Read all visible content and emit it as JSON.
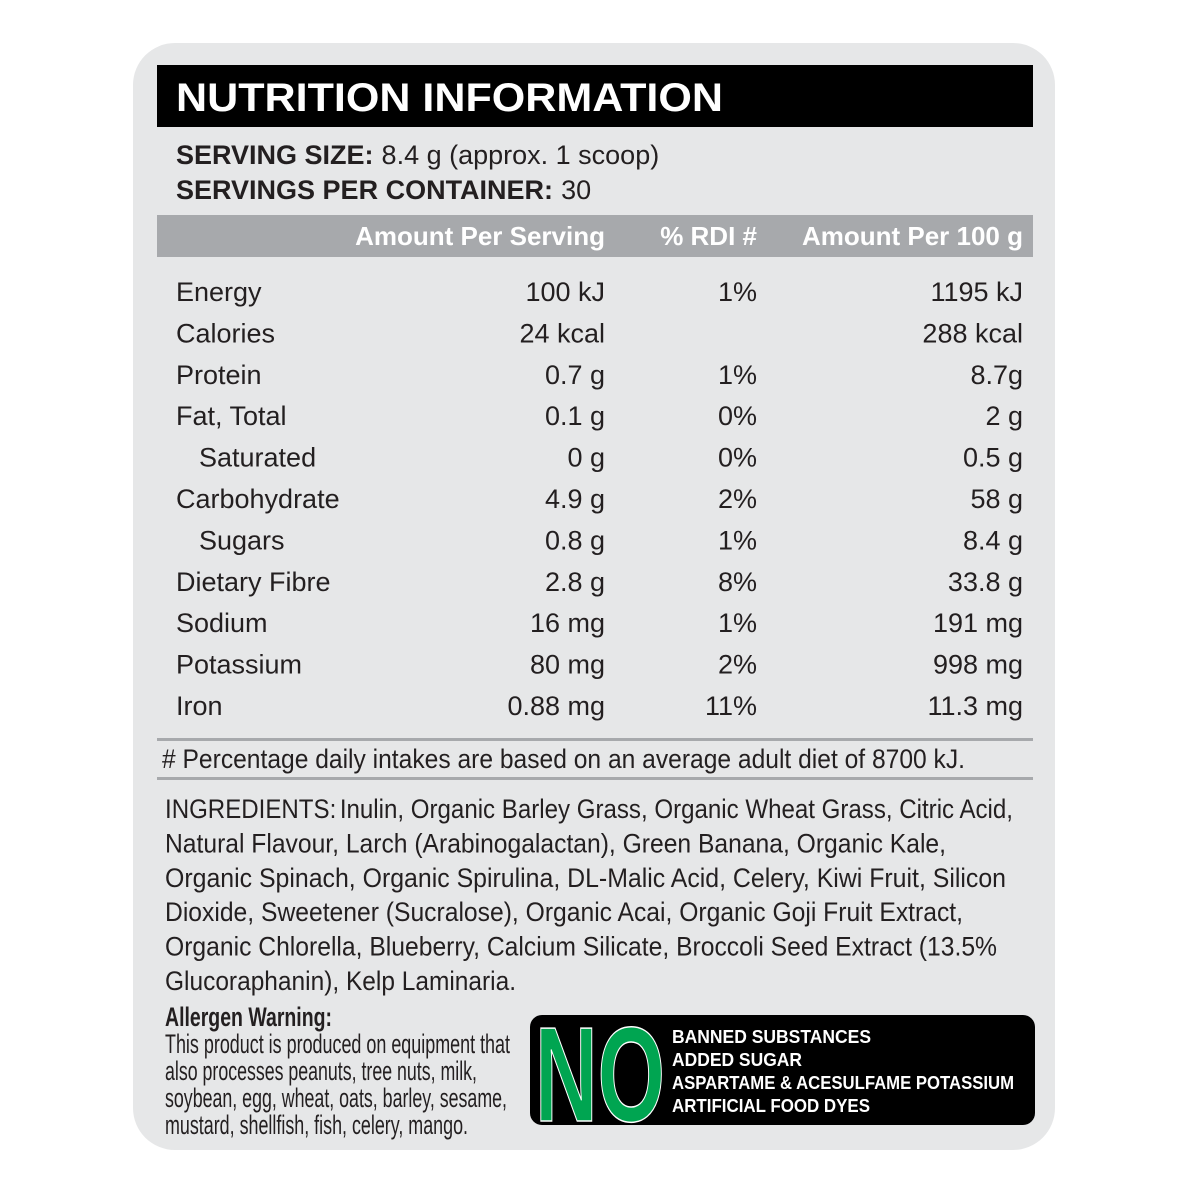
{
  "header": {
    "title": "NUTRITION INFORMATION"
  },
  "serving": {
    "size_label": "SERVING SIZE:",
    "size_value": "8.4 g (approx. 1 scoop)",
    "servings_label": "SERVINGS PER CONTAINER:",
    "servings_value": "30"
  },
  "table": {
    "columns": [
      "Amount Per Serving",
      "% RDI #",
      "Amount Per 100 g"
    ],
    "rows": [
      [
        "Energy",
        "100 kJ",
        "1%",
        "1195 kJ"
      ],
      [
        "Calories",
        "24 kcal",
        null,
        "288 kcal"
      ],
      [
        "Protein",
        "0.7 g",
        "1%",
        "8.7g"
      ],
      [
        "Fat, Total",
        "0.1 g",
        "0%",
        "2 g"
      ],
      [
        "Saturated",
        "0 g",
        "0%",
        "0.5 g"
      ],
      [
        "Carbohydrate",
        "4.9 g",
        "2%",
        "58 g"
      ],
      [
        "Sugars",
        "0.8 g",
        "1%",
        "8.4 g"
      ],
      [
        "Dietary Fibre",
        "2.8 g",
        "8%",
        "33.8 g"
      ],
      [
        "Sodium",
        "16 mg",
        "1%",
        "191 mg"
      ],
      [
        "Potassium",
        "80 mg",
        "2%",
        "998 mg"
      ],
      [
        "Iron",
        "0.88 mg",
        "11%",
        "11.3 mg"
      ]
    ]
  },
  "footnote": "# Percentage daily intakes are based on an average adult diet of 8700 kJ.",
  "ingredients": {
    "label": "INGREDIENTS:",
    "lines": [
      "Inulin, Organic Barley Grass, Organic Wheat Grass, Citric Acid,",
      "Natural Flavour, Larch (Arabinogalactan), Green Banana, Organic Kale,",
      "Organic Spinach, Organic Spirulina, DL-Malic Acid, Celery, Kiwi Fruit, Silicon",
      "Dioxide, Sweetener (Sucralose), Organic Acai, Organic Goji Fruit Extract,",
      "Organic Chlorella, Blueberry, Calcium Silicate, Broccoli Seed Extract (13.5%",
      "Glucoraphanin), Kelp Laminaria."
    ]
  },
  "allergen": {
    "title": "Allergen Warning:",
    "lines": [
      "This product is produced on equipment that",
      "also processes peanuts, tree nuts, milk,",
      "soybean, egg, wheat, oats, barley, sesame,",
      "mustard, shellfish, fish, celery, mango."
    ]
  },
  "no_box": {
    "big": "NO",
    "items": [
      "BANNED SUBSTANCES",
      "ADDED SUGAR",
      "ASPARTAME & ACESULFAME POTASSIUM",
      "ARTIFICIAL FOOD DYES"
    ]
  }
}
